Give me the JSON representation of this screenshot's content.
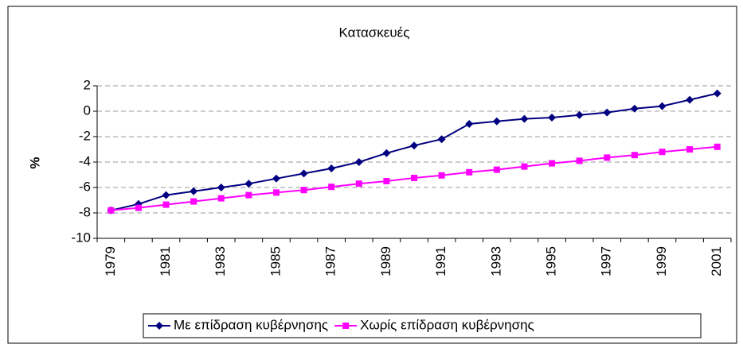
{
  "chart_data": {
    "type": "line",
    "title": "Κατασκευές",
    "y_label": "%",
    "categories": [
      "1979",
      null,
      "1981",
      null,
      "1983",
      null,
      "1985",
      null,
      "1987",
      null,
      "1989",
      null,
      "1991",
      null,
      "1993",
      null,
      "1995",
      null,
      "1997",
      null,
      "1999",
      null,
      "2001"
    ],
    "series": [
      {
        "name": "Με επίδραση κυβέρνησης",
        "color": "#000080",
        "marker": "diamond",
        "values": [
          -7.8,
          -7.3,
          -6.6,
          -6.3,
          -6.0,
          -5.7,
          -5.3,
          -4.9,
          -4.5,
          -4.0,
          -3.3,
          -2.7,
          -2.2,
          -1.0,
          -0.8,
          -0.6,
          -0.5,
          -0.3,
          -0.1,
          0.2,
          0.4,
          0.9,
          1.4
        ]
      },
      {
        "name": "Χωρίς επίδραση κυβέρνησης",
        "color": "#ff00ff",
        "marker": "square",
        "values": [
          -7.8,
          -7.6,
          -7.35,
          -7.1,
          -6.85,
          -6.6,
          -6.4,
          -6.2,
          -5.95,
          -5.7,
          -5.5,
          -5.25,
          -5.05,
          -4.8,
          -4.6,
          -4.35,
          -4.1,
          -3.9,
          -3.65,
          -3.45,
          -3.2,
          -3.0,
          -2.8
        ]
      }
    ],
    "ylim": [
      -10,
      2
    ],
    "yticks": [
      -10,
      -8,
      -6,
      -4,
      -2,
      0,
      2
    ],
    "grid": true,
    "legend": "bottom"
  }
}
